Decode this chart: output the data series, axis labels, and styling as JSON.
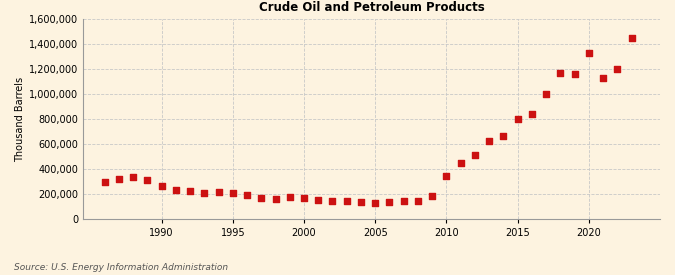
{
  "ylabel": "Thousand Barrels",
  "source": "Source: U.S. Energy Information Administration",
  "background_color": "#fdf3e0",
  "plot_bg_color": "#fdf3e0",
  "marker_color": "#cc1111",
  "years": [
    1986,
    1987,
    1988,
    1989,
    1990,
    1991,
    1992,
    1993,
    1994,
    1995,
    1996,
    1997,
    1998,
    1999,
    2000,
    2001,
    2002,
    2003,
    2004,
    2005,
    2006,
    2007,
    2008,
    2009,
    2010,
    2011,
    2012,
    2013,
    2014,
    2015,
    2016,
    2017,
    2018,
    2019,
    2020,
    2021,
    2022,
    2023
  ],
  "values": [
    295000,
    320000,
    335000,
    310000,
    265000,
    235000,
    220000,
    205000,
    215000,
    205000,
    190000,
    165000,
    160000,
    175000,
    165000,
    155000,
    145000,
    140000,
    135000,
    125000,
    135000,
    140000,
    140000,
    180000,
    340000,
    450000,
    510000,
    620000,
    660000,
    800000,
    840000,
    1000000,
    1170000,
    1160000,
    1330000,
    1130000,
    1200000,
    1450000
  ],
  "ylim": [
    0,
    1600000
  ],
  "xlim": [
    1984.5,
    2025
  ],
  "yticks": [
    0,
    200000,
    400000,
    600000,
    800000,
    1000000,
    1200000,
    1400000,
    1600000
  ],
  "xticks": [
    1990,
    1995,
    2000,
    2005,
    2010,
    2015,
    2020
  ],
  "grid_color": "#c8c8c8",
  "spine_color": "#999999"
}
